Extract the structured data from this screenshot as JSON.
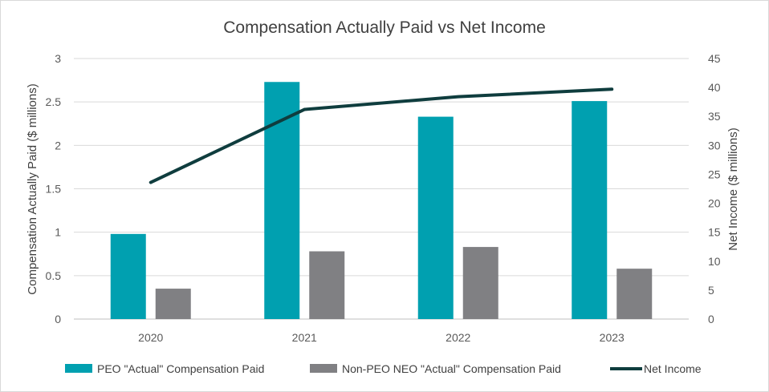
{
  "chart_data": {
    "type": "bar",
    "title": "Compensation Actually Paid vs Net Income",
    "categories": [
      "2020",
      "2021",
      "2022",
      "2023"
    ],
    "ylabel": "Compensation Actually Paid ($ millions)",
    "ylabel_right": "Net Income ($ millions)",
    "ylim": [
      0,
      3
    ],
    "ylim_right": [
      0,
      45
    ],
    "yticks": [
      "0",
      "0.5",
      "1",
      "1.5",
      "2",
      "2.5",
      "3"
    ],
    "yticks_right": [
      "0",
      "5",
      "10",
      "15",
      "20",
      "25",
      "30",
      "35",
      "40",
      "45"
    ],
    "grid": true,
    "legend_position": "bottom",
    "series": [
      {
        "name": "PEO \"Actual\" Compensation Paid",
        "kind": "bar",
        "axis": "left",
        "color": "#00a0b0",
        "values": [
          0.98,
          2.73,
          2.33,
          2.51
        ]
      },
      {
        "name": "Non-PEO NEO \"Actual\" Compensation Paid",
        "kind": "bar",
        "axis": "left",
        "color": "#808083",
        "values": [
          0.35,
          0.78,
          0.83,
          0.58
        ]
      },
      {
        "name": "Net Income",
        "kind": "line",
        "axis": "right",
        "color": "#0f3d3e",
        "values": [
          23.6,
          36.2,
          38.4,
          39.7
        ]
      }
    ]
  }
}
